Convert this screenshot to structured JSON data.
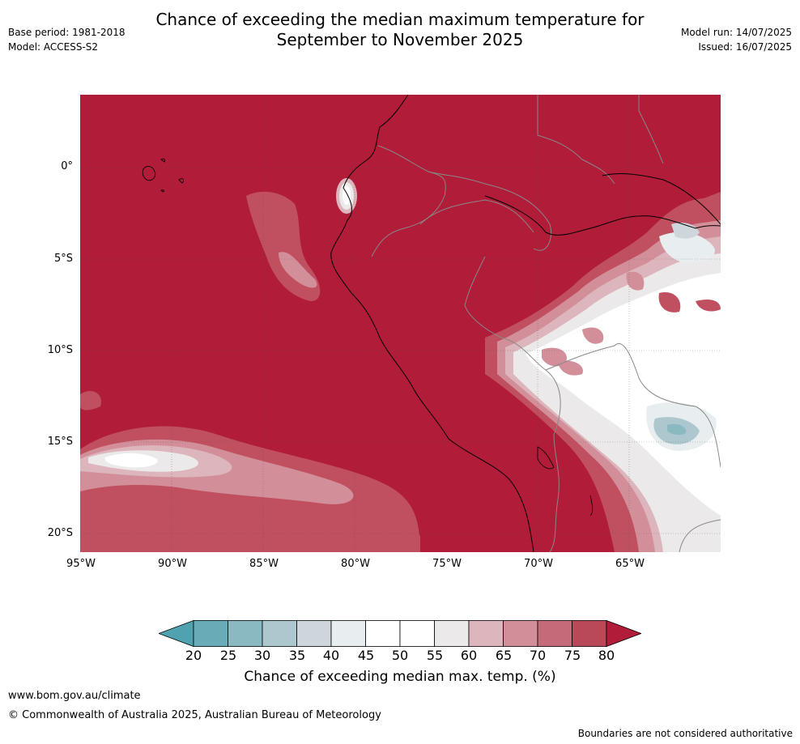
{
  "header": {
    "base_period": "Base period: 1981-2018",
    "model": "Model: ACCESS-S2",
    "title_line1": "Chance of exceeding the median maximum temperature for",
    "title_line2": "September to November 2025",
    "model_run": "Model run: 14/07/2025",
    "issued": "Issued: 16/07/2025"
  },
  "map": {
    "lat_labels": [
      "0°",
      "5°S",
      "10°S",
      "15°S",
      "20°S"
    ],
    "lon_labels": [
      "95°W",
      "90°W",
      "85°W",
      "80°W",
      "75°W",
      "70°W",
      "65°W"
    ],
    "base_color": "#b11c39"
  },
  "colorbar": {
    "ticks": [
      "20",
      "25",
      "30",
      "35",
      "40",
      "45",
      "50",
      "55",
      "60",
      "65",
      "70",
      "75",
      "80"
    ],
    "colors": [
      "#6aabb8",
      "#8bb9c2",
      "#acc7cd",
      "#cdd7db",
      "#e8eef0",
      "#ffffff",
      "#ffffff",
      "#ebe9e9",
      "#ddb5bc",
      "#d28f9a",
      "#c46a78",
      "#b94958"
    ],
    "under_color": "#50a2b1",
    "over_color": "#b11c39",
    "label": "Chance of exceeding median max. temp. (%)"
  },
  "footer": {
    "url": "www.bom.gov.au/climate",
    "copyright": "© Commonwealth of Australia 2025, Australian Bureau of Meteorology",
    "disclaimer": "Boundaries are not considered authoritative"
  }
}
